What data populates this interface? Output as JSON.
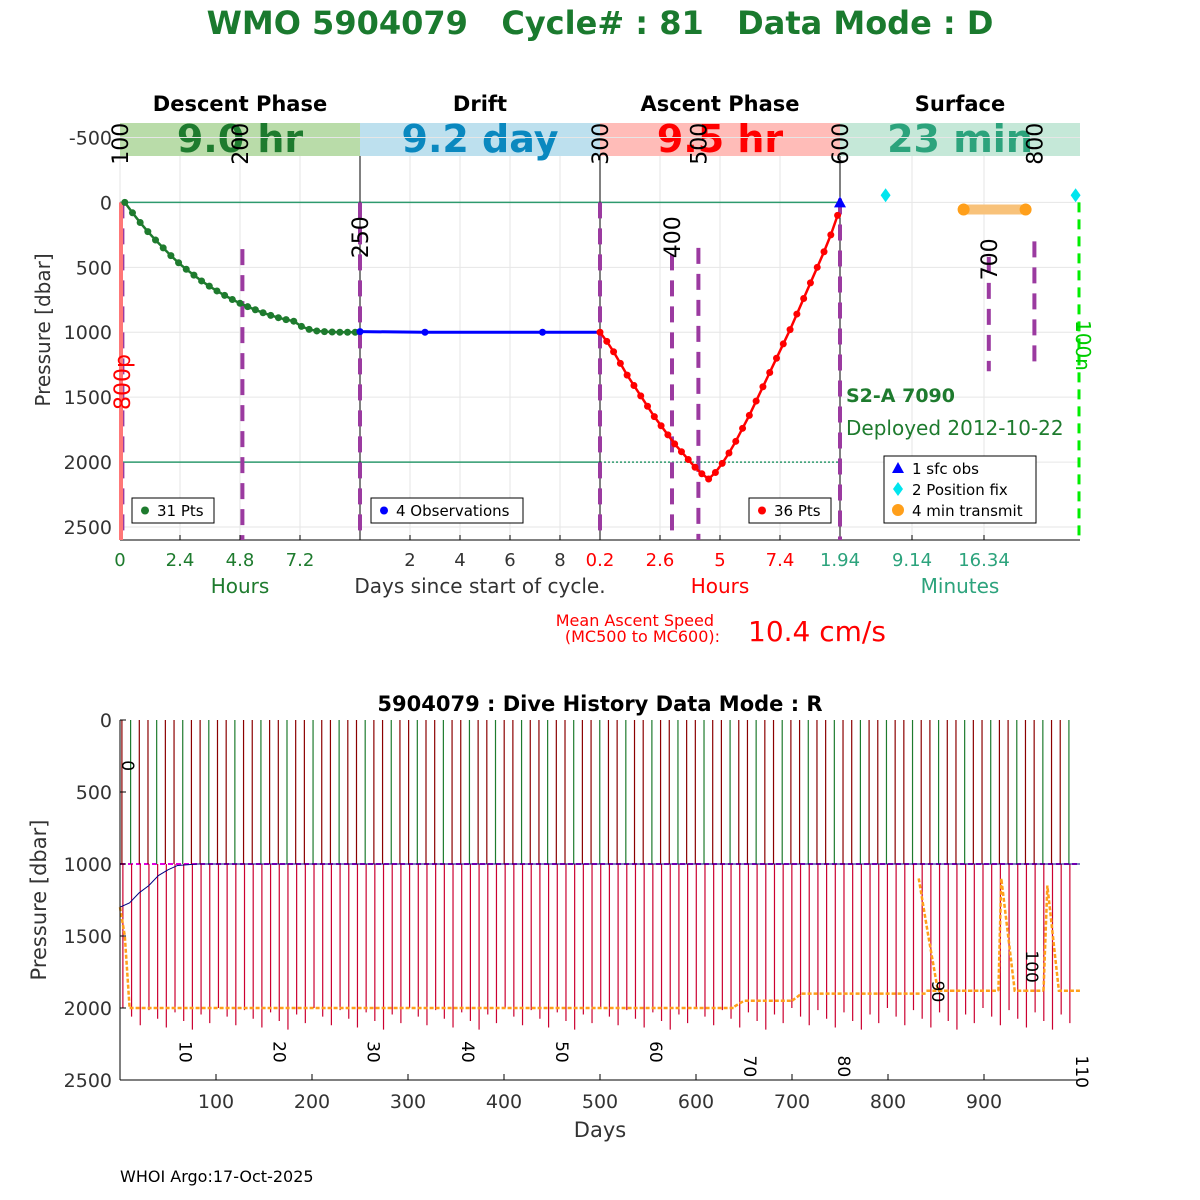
{
  "title": "WMO 5904079   Cycle# : 81   Data Mode : D",
  "colors": {
    "title_green": "#1a7a2e",
    "descent_green": "#1e7b2e",
    "drift_blue": "#0000ff",
    "ascent_red": "#ff0000",
    "surface_teal": "#2ca37c",
    "dash_purple": "#9b3aa0",
    "orange": "#ff9f1a",
    "cyan": "#00e5ee",
    "line_green": "#2e9a6e",
    "magenta": "#e000e0"
  },
  "top": {
    "phases": [
      {
        "name": "Descent Phase",
        "duration": "9.0 hr",
        "band": "#b9dca9",
        "text": "#1e7b2e"
      },
      {
        "name": "Drift",
        "duration": "9.2 day",
        "band": "#bde0ee",
        "text": "#0a88bf"
      },
      {
        "name": "Ascent Phase",
        "duration": "9.5 hr",
        "band": "#ffbcb8",
        "text": "#ff0000"
      },
      {
        "name": "Surface",
        "duration": "23 min",
        "band": "#c5e8d8",
        "text": "#2ca37c"
      }
    ],
    "ylabel": "Pressure [dbar]",
    "ylim": [
      2600,
      -650
    ],
    "yticks": [
      -500,
      0,
      500,
      1000,
      1500,
      2000,
      2500
    ],
    "ref_lines": [
      0,
      2000
    ],
    "panel_xticks": [
      {
        "labels": [
          "0",
          "2.4",
          "4.8",
          "7.2"
        ],
        "pos": [
          0,
          2.4,
          4.8,
          7.2
        ],
        "range": [
          0,
          9.6
        ],
        "color": "#1e7b2e"
      },
      {
        "labels": [
          "2",
          "4",
          "6",
          "8"
        ],
        "pos": [
          2,
          4,
          6,
          8
        ],
        "range": [
          0,
          9.6
        ],
        "color": "#333333"
      },
      {
        "labels": [
          "0.2",
          "2.6",
          "5",
          "7.4"
        ],
        "pos": [
          0.2,
          2.6,
          5,
          7.4
        ],
        "range": [
          0.2,
          9.8
        ],
        "color": "#ff0000"
      },
      {
        "labels": [
          "1.94",
          "9.14",
          "16.34"
        ],
        "pos": [
          1.94,
          9.14,
          16.34
        ],
        "range": [
          1.94,
          25.94
        ],
        "color": "#2ca37c"
      }
    ],
    "panel_xlabels": [
      "Hours",
      "Days since start of cycle.",
      "Hours",
      "Minutes"
    ],
    "mission_codes": [
      {
        "label": "100",
        "panel": 0,
        "frac": 0.0,
        "y": -290
      },
      {
        "label": "200",
        "panel": 0,
        "frac": 0.5,
        "y": -290
      },
      {
        "label": "250",
        "panel": 1,
        "frac": 0.0,
        "y": 430
      },
      {
        "label": "300",
        "panel": 2,
        "frac": 0.0,
        "y": -290
      },
      {
        "label": "400",
        "panel": 2,
        "frac": 0.3,
        "y": 430
      },
      {
        "label": "500",
        "panel": 2,
        "frac": 0.41,
        "y": -290
      },
      {
        "label": "600",
        "panel": 3,
        "frac": 0.0,
        "y": -290
      },
      {
        "label": "700",
        "panel": 3,
        "frac": 0.62,
        "y": 600
      },
      {
        "label": "800",
        "panel": 3,
        "frac": 0.81,
        "y": -290
      }
    ],
    "dashed_markers": [
      {
        "panel": 0,
        "frac": 0.01,
        "y1": 0,
        "y2": 2600
      },
      {
        "panel": 0,
        "frac": 0.51,
        "y1": 360,
        "y2": 2600
      },
      {
        "panel": 1,
        "frac": 0.0,
        "y1": 0,
        "y2": 2600
      },
      {
        "panel": 2,
        "frac": 0.0,
        "y1": 0,
        "y2": 2600
      },
      {
        "panel": 2,
        "frac": 0.3,
        "y1": 400,
        "y2": 2600
      },
      {
        "panel": 2,
        "frac": 0.41,
        "y1": 350,
        "y2": 2600
      },
      {
        "panel": 3,
        "frac": 0.0,
        "y1": -30,
        "y2": 2600
      },
      {
        "panel": 3,
        "frac": 0.62,
        "y1": 420,
        "y2": 1300
      },
      {
        "panel": 3,
        "frac": 0.81,
        "y1": 300,
        "y2": 1230
      }
    ],
    "descent": {
      "legend": "31 Pts",
      "pressure": [
        0,
        80,
        155,
        225,
        290,
        350,
        410,
        465,
        515,
        560,
        605,
        645,
        682,
        716,
        748,
        777,
        803,
        827,
        850,
        870,
        888,
        903,
        915,
        955,
        978,
        990,
        995,
        998,
        1000,
        1000,
        1000
      ]
    },
    "drift": {
      "legend": "4 Observations",
      "days": [
        0,
        2.6,
        7.3,
        9.6
      ],
      "pressure": [
        995,
        1000,
        1000,
        1000
      ]
    },
    "ascent": {
      "legend": "36 Pts",
      "pressure": [
        1000,
        1070,
        1150,
        1240,
        1330,
        1410,
        1490,
        1570,
        1650,
        1720,
        1790,
        1860,
        1920,
        1980,
        2040,
        2090,
        2130,
        2080,
        2010,
        1930,
        1840,
        1740,
        1640,
        1530,
        1420,
        1310,
        1200,
        1090,
        980,
        860,
        740,
        620,
        500,
        380,
        250,
        100
      ]
    },
    "surface": {
      "sfc_obs_label": "1 sfc obs",
      "position_fix_label": "2 Position fix",
      "transmit_label": "4 min transmit",
      "position_fix_minutes": [
        6.5,
        25.5
      ],
      "transmit_minutes": [
        14.3,
        20.5
      ],
      "sfc_obs_pressure": 0
    },
    "annotations": {
      "left_red": "800p",
      "right_green": "100n",
      "float_type": "S2-A 7090",
      "deployed": "Deployed 2012-10-22"
    },
    "ascent_speed_label_line1": "Mean Ascent Speed",
    "ascent_speed_label_line2": "(MC500 to MC600):",
    "ascent_speed_value": "10.4 cm/s"
  },
  "chart_data": {
    "type": "line",
    "title": "5904079 : Dive History      Data Mode : R",
    "xlabel": "Days",
    "ylabel": "Pressure [dbar]",
    "xlim": [
      0,
      1000
    ],
    "ylim": [
      2500,
      0
    ],
    "xticks": [
      100,
      200,
      300,
      400,
      500,
      600,
      700,
      800,
      900
    ],
    "yticks": [
      0,
      500,
      1000,
      1500,
      2000,
      2500
    ],
    "cycle_period_days": 9.2,
    "n_cycles": 110,
    "park_pressure": 1000,
    "cycle_labels": [
      {
        "label": "0",
        "day": 2,
        "pressure": 280
      },
      {
        "label": "10",
        "day": 62,
        "pressure": 2230
      },
      {
        "label": "20",
        "day": 160,
        "pressure": 2230
      },
      {
        "label": "30",
        "day": 258,
        "pressure": 2230
      },
      {
        "label": "40",
        "day": 356,
        "pressure": 2230
      },
      {
        "label": "50",
        "day": 454,
        "pressure": 2230
      },
      {
        "label": "60",
        "day": 552,
        "pressure": 2230
      },
      {
        "label": "70",
        "day": 650,
        "pressure": 2330
      },
      {
        "label": "80",
        "day": 748,
        "pressure": 2330
      },
      {
        "label": "90",
        "day": 846,
        "pressure": 1810
      },
      {
        "label": "100",
        "day": 944,
        "pressure": 1600
      },
      {
        "label": "110",
        "day": 1042,
        "pressure": 2330
      }
    ],
    "profile_depth_segments": [
      {
        "x": [
          0,
          5,
          10
        ],
        "y": [
          1300,
          1500,
          2000
        ]
      },
      {
        "x": [
          10,
          640
        ],
        "y": [
          2000,
          2000
        ]
      },
      {
        "x": [
          640,
          650,
          700
        ],
        "y": [
          1990,
          1950,
          1950
        ]
      },
      {
        "x": [
          700,
          710,
          840
        ],
        "y": [
          1950,
          1900,
          1900
        ]
      },
      {
        "x": [
          840,
          850,
          900
        ],
        "y": [
          1880,
          1880,
          1880
        ]
      },
      {
        "x": [
          832,
          842,
          852
        ],
        "y": [
          1100,
          1500,
          1880
        ]
      },
      {
        "x": [
          852,
          915
        ],
        "y": [
          1880,
          1880
        ]
      },
      {
        "x": [
          915,
          918,
          932,
          942
        ],
        "y": [
          1880,
          1100,
          1880,
          1880
        ]
      },
      {
        "x": [
          942,
          962
        ],
        "y": [
          1880,
          1880
        ]
      },
      {
        "x": [
          962,
          966,
          978,
          1000
        ],
        "y": [
          1880,
          1150,
          1880,
          1880
        ]
      }
    ],
    "drift_pressure_steps": {
      "x": [
        0,
        10,
        20,
        30,
        40,
        50,
        60,
        80,
        1000
      ],
      "y": [
        1300,
        1270,
        1200,
        1150,
        1080,
        1040,
        1010,
        1000,
        1000
      ]
    },
    "footer": "WHOI Argo:17-Oct-2025"
  }
}
